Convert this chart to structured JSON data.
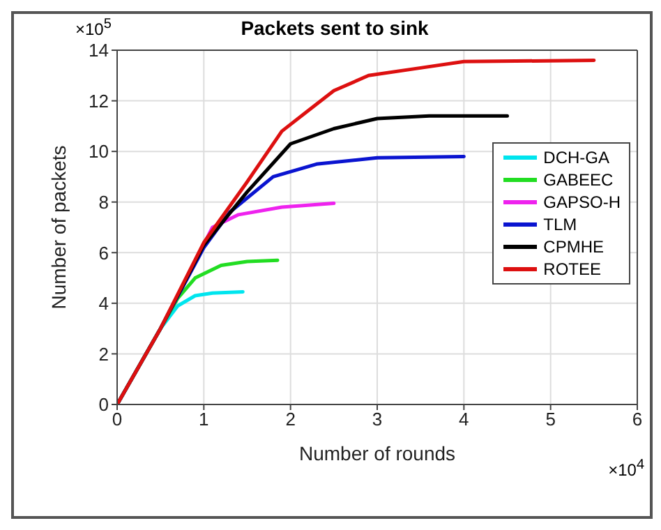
{
  "chart_data": {
    "type": "line",
    "title": "Packets sent to sink",
    "xlabel": "Number of rounds",
    "ylabel": "Number of packets",
    "annotations": [
      "×10$^{5}$",
      "×10$^{4}$"
    ],
    "xlim": [
      0,
      6
    ],
    "xticks": [
      0,
      1,
      2,
      3,
      4,
      5,
      6
    ],
    "ylim": [
      0,
      14
    ],
    "yticks": [
      0,
      2,
      4,
      6,
      8,
      10,
      12,
      14
    ],
    "grid": true,
    "legend": "right",
    "marker": "none",
    "line_style": "solid",
    "series": [
      {
        "name": "DCH-GA",
        "color": "#00e5ee",
        "x": [
          0,
          0.5,
          0.7,
          0.9,
          1.1,
          1.45
        ],
        "values": [
          0,
          3,
          3.9,
          4.3,
          4.4,
          4.45
        ]
      },
      {
        "name": "GABEEC",
        "color": "#22dd22",
        "x": [
          0,
          0.5,
          0.7,
          0.9,
          1.2,
          1.5,
          1.85
        ],
        "values": [
          0,
          3,
          4.2,
          5.0,
          5.5,
          5.65,
          5.7
        ]
      },
      {
        "name": "GAPSO-H",
        "color": "#ee22ee",
        "x": [
          0.8,
          1.1,
          1.4,
          1.9,
          2.5
        ],
        "values": [
          5,
          7.0,
          7.5,
          7.8,
          7.95
        ]
      },
      {
        "name": "TLM",
        "color": "#0a14d0",
        "x": [
          0,
          0.5,
          1.0,
          1.3,
          1.8,
          2.3,
          3.0,
          4.0
        ],
        "values": [
          0,
          3,
          6.2,
          7.6,
          9.0,
          9.5,
          9.75,
          9.8
        ]
      },
      {
        "name": "CPMHE",
        "color": "#000000",
        "x": [
          0,
          0.5,
          1.0,
          1.5,
          2.0,
          2.5,
          3.0,
          3.6,
          4.5
        ],
        "values": [
          0,
          3,
          6.3,
          8.4,
          10.3,
          10.9,
          11.3,
          11.4,
          11.4
        ]
      },
      {
        "name": "ROTEE",
        "color": "#dd1010",
        "x": [
          0,
          0.5,
          1.0,
          1.5,
          1.9,
          2.2,
          2.5,
          2.9,
          3.5,
          4.0,
          5.5
        ],
        "values": [
          0,
          3,
          6.4,
          8.8,
          10.8,
          11.6,
          12.4,
          13.0,
          13.3,
          13.55,
          13.6
        ]
      }
    ]
  }
}
